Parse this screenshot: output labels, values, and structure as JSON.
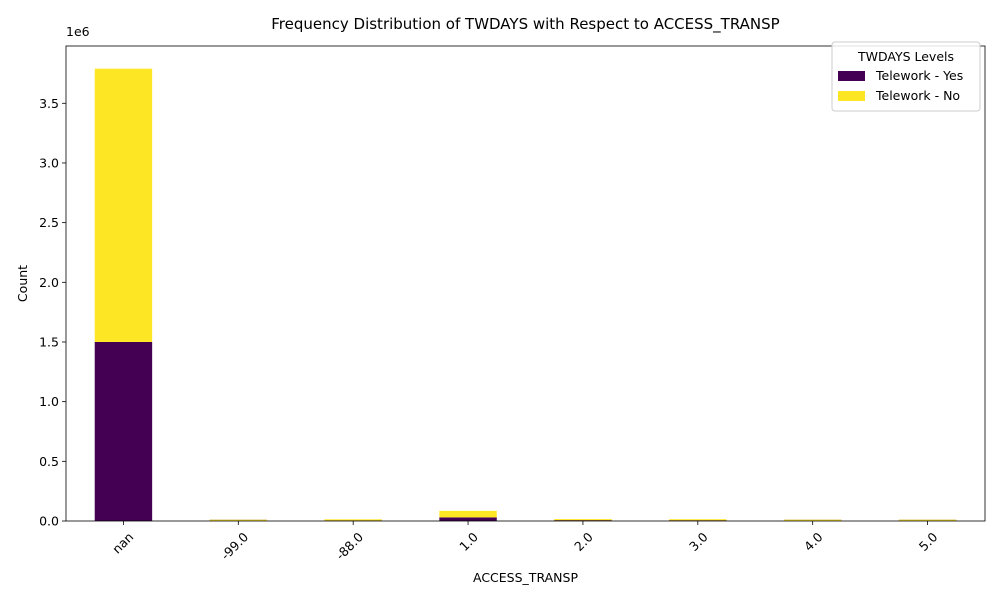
{
  "chart_data": {
    "type": "bar",
    "stacked": true,
    "title": "Frequency Distribution of TWDAYS with Respect to ACCESS_TRANSP",
    "xlabel": "ACCESS_TRANSP",
    "ylabel": "Count",
    "y_offset_label": "1e6",
    "ylim": [
      0,
      3.98
    ],
    "yticks": [
      0.0,
      0.5,
      1.0,
      1.5,
      2.0,
      2.5,
      3.0,
      3.5
    ],
    "ytick_labels": [
      "0.0",
      "0.5",
      "1.0",
      "1.5",
      "2.0",
      "2.5",
      "3.0",
      "3.5"
    ],
    "categories": [
      "nan",
      "-99.0",
      "-88.0",
      "1.0",
      "2.0",
      "3.0",
      "4.0",
      "5.0"
    ],
    "series": [
      {
        "name": "Telework - Yes",
        "color": "#440154",
        "values": [
          1.5,
          0.0005,
          0.004,
          0.03,
          0.006,
          0.005,
          0.0008,
          0.0008
        ]
      },
      {
        "name": "Telework - No",
        "color": "#fde725",
        "values": [
          2.29,
          0.002,
          0.008,
          0.055,
          0.004,
          0.003,
          0.003,
          0.003
        ]
      }
    ],
    "legend": {
      "title": "TWDAYS Levels",
      "placement": "upper right"
    },
    "grid": false
  }
}
